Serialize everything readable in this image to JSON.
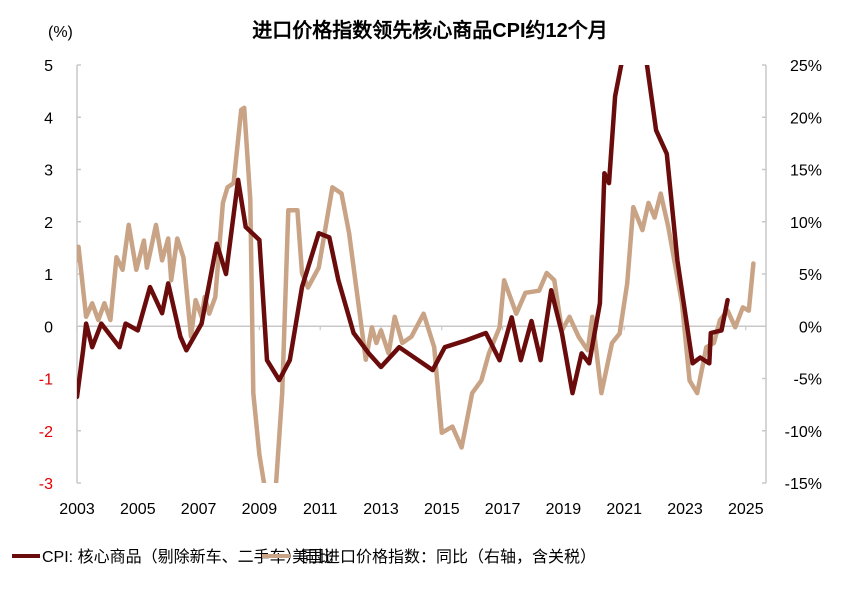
{
  "chart_data": {
    "type": "line",
    "title": "进口价格指数领先核心商品CPI约12个月",
    "ylabel_left": "(%)",
    "xlim": [
      2003,
      2025.4
    ],
    "ylim_left": [
      -3,
      5
    ],
    "ylim_right": [
      -15,
      25
    ],
    "x_ticks": [
      "2003",
      "2005",
      "2007",
      "2009",
      "2011",
      "2013",
      "2015",
      "2017",
      "2019",
      "2021",
      "2023",
      "2025"
    ],
    "y_ticks_left": [
      "5",
      "4",
      "3",
      "2",
      "1",
      "0",
      "-1",
      "-2",
      "-3"
    ],
    "y_ticks_right": [
      "25%",
      "20%",
      "15%",
      "10%",
      "5%",
      "0%",
      "-5%",
      "-10%",
      "-15%"
    ],
    "negative_left_tick_color": "#e00000",
    "grid": false,
    "legend_position": "bottom",
    "series": [
      {
        "name": "CPI: 核心商品（剔除新车、二手车）同比",
        "axis": "left",
        "color": "#6b0c0c",
        "x": [
          2003.0,
          2003.2,
          2003.3,
          2003.5,
          2003.8,
          2004.4,
          2004.6,
          2005.0,
          2005.4,
          2005.8,
          2006.0,
          2006.4,
          2006.6,
          2007.1,
          2007.6,
          2007.9,
          2008.3,
          2008.55,
          2009.0,
          2009.25,
          2009.65,
          2010.0,
          2010.4,
          2010.95,
          2011.3,
          2011.6,
          2012.1,
          2012.6,
          2013.0,
          2013.6,
          2014.7,
          2015.1,
          2015.8,
          2016.45,
          2016.9,
          2017.3,
          2017.6,
          2017.95,
          2018.25,
          2018.6,
          2018.95,
          2019.3,
          2019.6,
          2019.85,
          2020.2,
          2020.35,
          2020.5,
          2020.7,
          2020.9,
          2021.3,
          2021.75,
          2022.05,
          2022.4,
          2022.75,
          2023.25,
          2023.5,
          2023.8,
          2023.85,
          2024.2,
          2024.4
        ],
        "values": [
          -1.35,
          -0.46,
          0.05,
          -0.4,
          0.05,
          -0.4,
          0.05,
          -0.08,
          0.75,
          0.25,
          0.82,
          -0.2,
          -0.46,
          0.05,
          1.58,
          1.0,
          2.8,
          1.9,
          1.65,
          -0.65,
          -1.03,
          -0.65,
          0.75,
          1.78,
          1.7,
          0.88,
          -0.13,
          -0.52,
          -0.78,
          -0.4,
          -0.84,
          -0.4,
          -0.27,
          -0.13,
          -0.65,
          0.17,
          -0.65,
          0.1,
          -0.65,
          0.69,
          -0.13,
          -1.28,
          -0.52,
          -0.71,
          0.44,
          2.93,
          2.74,
          4.4,
          5.0,
          7.0,
          5.0,
          3.75,
          3.3,
          1.26,
          -0.71,
          -0.6,
          -0.71,
          -0.13,
          -0.08,
          0.5
        ]
      },
      {
        "name": "美国进口价格指数：同比（右轴，含关税）",
        "axis": "right",
        "color": "#c9a385",
        "x": [
          2003.0,
          2003.05,
          2003.3,
          2003.5,
          2003.7,
          2003.9,
          2004.1,
          2004.3,
          2004.5,
          2004.7,
          2004.95,
          2005.2,
          2005.3,
          2005.6,
          2005.8,
          2006.0,
          2006.1,
          2006.3,
          2006.5,
          2006.75,
          2006.9,
          2007.1,
          2007.2,
          2007.35,
          2007.55,
          2007.8,
          2007.95,
          2008.15,
          2008.4,
          2008.5,
          2008.7,
          2008.8,
          2009.0,
          2009.15,
          2009.35,
          2009.55,
          2009.75,
          2009.95,
          2010.25,
          2010.4,
          2010.6,
          2010.95,
          2011.4,
          2011.7,
          2011.95,
          2012.5,
          2012.7,
          2012.85,
          2013.0,
          2013.25,
          2013.45,
          2013.7,
          2014.0,
          2014.4,
          2014.75,
          2015.0,
          2015.35,
          2015.65,
          2016.0,
          2016.3,
          2016.55,
          2016.9,
          2017.05,
          2017.45,
          2017.75,
          2018.2,
          2018.45,
          2018.7,
          2018.95,
          2019.2,
          2019.5,
          2019.8,
          2019.95,
          2020.25,
          2020.6,
          2020.85,
          2021.1,
          2021.3,
          2021.6,
          2021.8,
          2022.0,
          2022.2,
          2022.45,
          2022.9,
          2023.15,
          2023.4,
          2023.7,
          2023.95,
          2024.15,
          2024.4,
          2024.65,
          2024.9,
          2025.1,
          2025.25
        ],
        "values": [
          6.3,
          7.6,
          0.9,
          2.2,
          0.6,
          2.2,
          0.6,
          6.6,
          5.4,
          9.7,
          5.4,
          8.2,
          5.6,
          9.7,
          6.3,
          8.4,
          4.4,
          8.4,
          6.6,
          -1.0,
          2.5,
          0.9,
          2.8,
          1.2,
          2.8,
          11.8,
          13.3,
          13.7,
          20.7,
          20.9,
          12.1,
          -6.4,
          -12.3,
          -15.0,
          -17.0,
          -15.0,
          -6.4,
          11.1,
          11.1,
          5.1,
          3.7,
          5.6,
          13.3,
          12.7,
          8.9,
          -3.2,
          -0.1,
          -1.6,
          -0.4,
          -2.6,
          0.9,
          -1.6,
          -1.0,
          1.2,
          -2.0,
          -10.2,
          -9.6,
          -11.6,
          -6.4,
          -5.2,
          -2.6,
          -0.1,
          4.4,
          1.2,
          3.2,
          3.4,
          5.1,
          4.4,
          -0.4,
          0.9,
          -1.0,
          -2.3,
          0.9,
          -6.4,
          -1.6,
          -0.7,
          4.1,
          11.4,
          9.2,
          11.8,
          10.4,
          12.7,
          9.5,
          2.2,
          -5.2,
          -6.4,
          -2.0,
          -1.6,
          0.6,
          1.5,
          -0.1,
          1.8,
          1.5,
          6.0
        ]
      }
    ]
  }
}
